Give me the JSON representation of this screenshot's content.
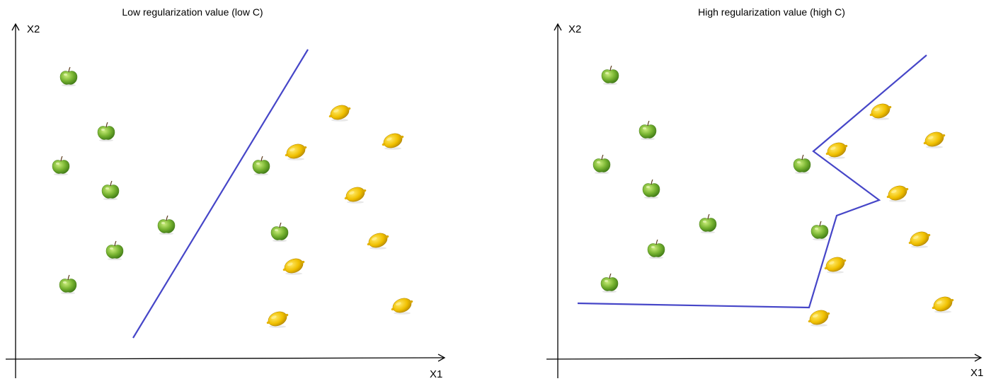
{
  "panels": [
    {
      "title": "Low regularization value (low C)",
      "y_axis_label": "X2",
      "x_axis_label": "X1"
    },
    {
      "title": "High regularization value (high C)",
      "y_axis_label": "X2",
      "x_axis_label": "X1"
    }
  ],
  "icons": {
    "apple": "apple-icon",
    "lemon": "lemon-icon"
  },
  "colors": {
    "boundary": "#4646c8",
    "apple": "#6fae2c",
    "lemon": "#e6b800"
  }
}
